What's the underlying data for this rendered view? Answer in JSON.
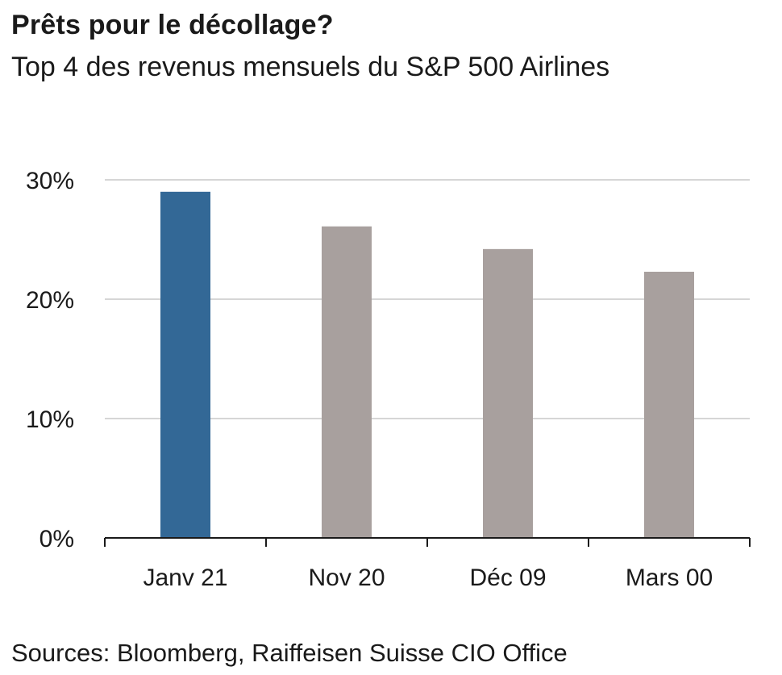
{
  "header": {
    "title": "Prêts pour le décollage?",
    "subtitle": "Top 4 des revenus mensuels du S&P 500 Airlines"
  },
  "footer": {
    "source": "Sources: Bloomberg, Raiffeisen Suisse CIO Office"
  },
  "colors": {
    "highlight": "#336896",
    "bar": "#a8a09e",
    "grid": "#c8c8c8",
    "axis": "#1a1a1a"
  },
  "chart_data": {
    "type": "bar",
    "title": "Prêts pour le décollage?",
    "subtitle": "Top 4 des revenus mensuels du S&P 500 Airlines",
    "categories": [
      "Janv 21",
      "Nov 20",
      "Déc 09",
      "Mars 00"
    ],
    "values": [
      29.0,
      26.1,
      24.2,
      22.3
    ],
    "unit": "%",
    "ylim": [
      0,
      30
    ],
    "yticks": [
      0,
      10,
      20,
      30
    ],
    "ytick_labels": [
      "0%",
      "10%",
      "20%",
      "30%"
    ],
    "highlight_index": 0,
    "grid": true,
    "legend": "none",
    "source": "Sources: Bloomberg, Raiffeisen Suisse CIO Office"
  }
}
